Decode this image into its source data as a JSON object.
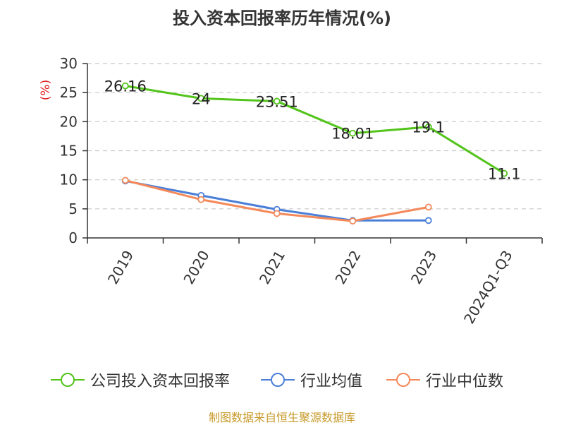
{
  "title": "投入资本回报率历年情况(%)",
  "source": "制图数据来自恒生聚源数据库",
  "chart_data": {
    "type": "line",
    "title": "投入资本回报率历年情况(%)",
    "ylabel": "(%)",
    "ylim": [
      0,
      30
    ],
    "yticks": [
      0,
      5,
      10,
      15,
      20,
      25,
      30
    ],
    "grid": true,
    "legend_position": "bottom",
    "categories": [
      "2019",
      "2020",
      "2021",
      "2022",
      "2023",
      "2024Q1-Q3"
    ],
    "series": [
      {
        "name": "公司投入资本回报率",
        "color": "#52c41a",
        "values": [
          26.16,
          24,
          23.51,
          18.01,
          19.1,
          11.1
        ],
        "labels": [
          "26.16",
          "24",
          "23.51",
          "18.01",
          "19.1",
          "11.1"
        ]
      },
      {
        "name": "行业均值",
        "color": "#4a7fd8",
        "values": [
          9.8,
          7.3,
          4.9,
          3.0,
          3.0,
          null
        ]
      },
      {
        "name": "行业中位数",
        "color": "#f4895a",
        "values": [
          9.9,
          6.6,
          4.2,
          2.9,
          5.3,
          null
        ]
      }
    ]
  }
}
